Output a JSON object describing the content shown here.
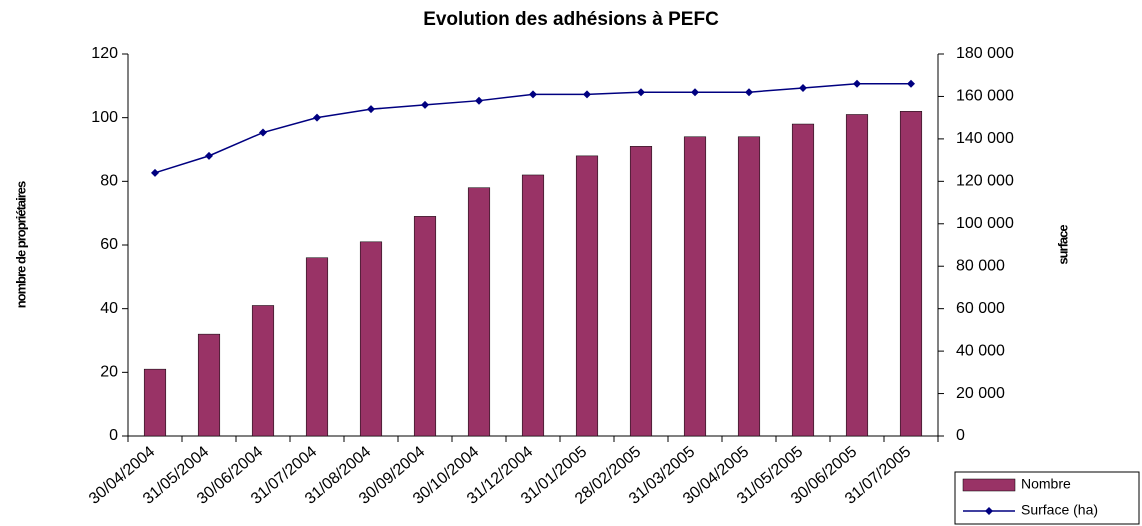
{
  "chart_data": {
    "type": "bar_line",
    "title": "Evolution des adhésions à PEFC",
    "y_label": "nombre de propriétaires",
    "y2_label": "surface",
    "categories": [
      "30/04/2004",
      "31/05/2004",
      "30/06/2004",
      "31/07/2004",
      "31/08/2004",
      "30/09/2004",
      "30/10/2004",
      "31/12/2004",
      "31/01/2005",
      "28/02/2005",
      "31/03/2005",
      "30/04/2005",
      "31/05/2005",
      "30/06/2005",
      "31/07/2005"
    ],
    "series": [
      {
        "name": "Nombre",
        "type": "bar",
        "color": "#993366",
        "axis": "y",
        "values": [
          21,
          32,
          41,
          56,
          61,
          69,
          78,
          82,
          88,
          91,
          94,
          94,
          98,
          101,
          102
        ]
      },
      {
        "name": "Surface (ha)",
        "type": "line",
        "color": "#000080",
        "axis": "y2",
        "values": [
          124000,
          132000,
          143000,
          150000,
          154000,
          156000,
          158000,
          161000,
          161000,
          162000,
          162000,
          162000,
          164000,
          166000,
          166000
        ]
      }
    ],
    "ylim": [
      0,
      120
    ],
    "yticks": [
      0,
      20,
      40,
      60,
      80,
      100,
      120
    ],
    "y2lim": [
      0,
      180000
    ],
    "y2ticks": [
      0,
      {
        "value": 20000,
        "label": "20 000"
      },
      {
        "value": 40000,
        "label": "40 000"
      },
      {
        "value": 60000,
        "label": "60 000"
      },
      {
        "value": 80000,
        "label": "80 000"
      },
      {
        "value": 100000,
        "label": "100 000"
      },
      {
        "value": 120000,
        "label": "120 000"
      },
      {
        "value": 140000,
        "label": "140 000"
      },
      {
        "value": 160000,
        "label": "160 000"
      },
      {
        "value": 180000,
        "label": "180 000"
      }
    ],
    "legend": "bottom-right"
  }
}
